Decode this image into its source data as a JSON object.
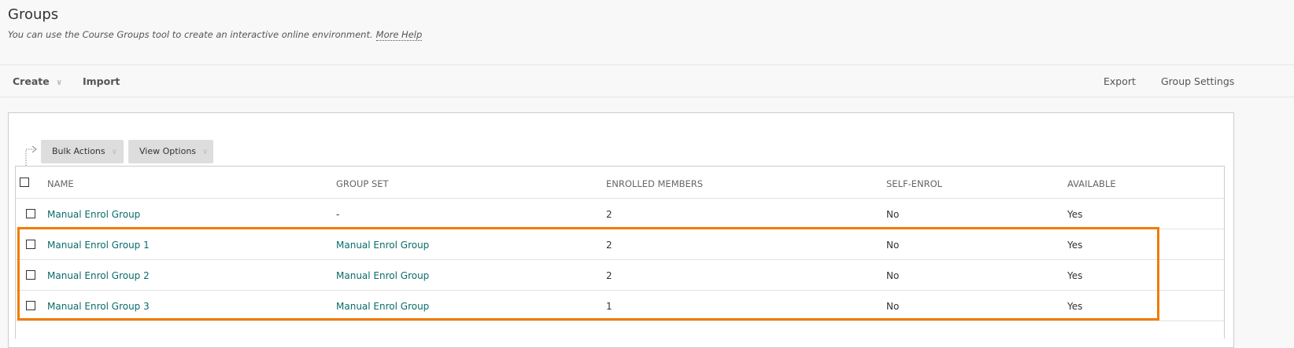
{
  "header": {
    "title": "Groups",
    "subtitle": "You can use the Course Groups tool to create an interactive online environment.",
    "help_link": "More Help"
  },
  "toolbar": {
    "create": "Create",
    "import": "Import",
    "export": "Export",
    "group_settings": "Group Settings"
  },
  "actions": {
    "bulk": "Bulk Actions",
    "view": "View Options"
  },
  "table": {
    "columns": [
      "NAME",
      "GROUP SET",
      "ENROLLED MEMBERS",
      "SELF-ENROL",
      "AVAILABLE"
    ],
    "rows": [
      {
        "name": "Manual Enrol Group",
        "group_set": "-",
        "enrolled": "2",
        "self_enrol": "No",
        "available": "Yes"
      },
      {
        "name": "Manual Enrol Group 1",
        "group_set": "Manual Enrol Group",
        "enrolled": "2",
        "self_enrol": "No",
        "available": "Yes"
      },
      {
        "name": "Manual Enrol Group 2",
        "group_set": "Manual Enrol Group",
        "enrolled": "2",
        "self_enrol": "No",
        "available": "Yes"
      },
      {
        "name": "Manual Enrol Group 3",
        "group_set": "Manual Enrol Group",
        "enrolled": "1",
        "self_enrol": "No",
        "available": "Yes"
      }
    ]
  },
  "colors": {
    "link": "#0b6a6a",
    "highlight": "#f07c00"
  }
}
